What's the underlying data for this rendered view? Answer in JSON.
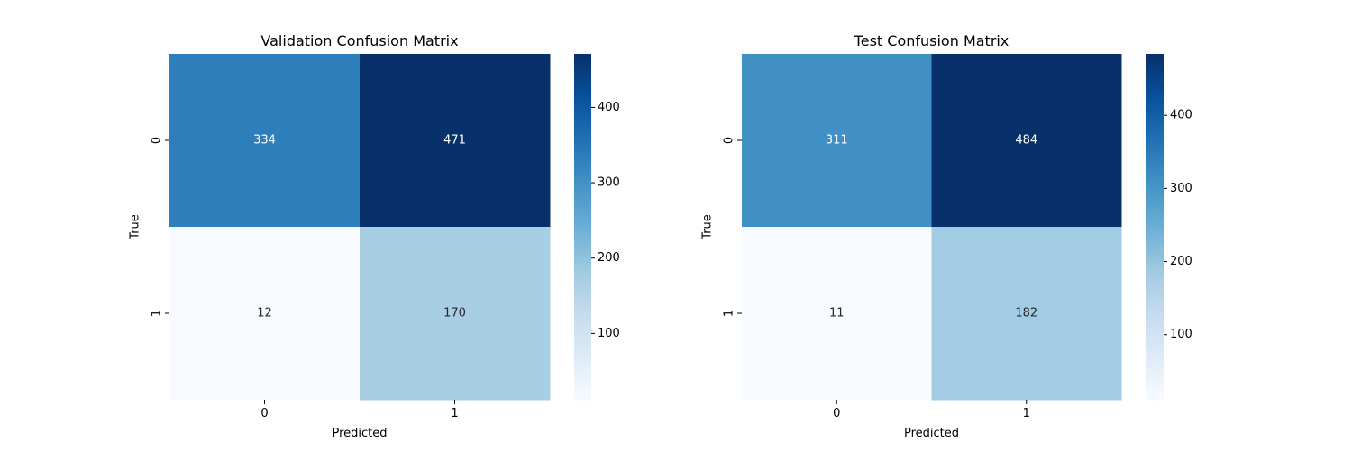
{
  "figure": {
    "background": "#ffffff"
  },
  "colormap": {
    "name": "Blues",
    "stops": [
      "#f7fbff",
      "#deebf7",
      "#c6dbef",
      "#9ecae1",
      "#6baed6",
      "#4292c6",
      "#2171b5",
      "#08519c",
      "#08306b"
    ]
  },
  "chart_data": [
    {
      "type": "heatmap",
      "title": "Validation Confusion Matrix",
      "xlabel": "Predicted",
      "ylabel": "True",
      "x_categories": [
        "0",
        "1"
      ],
      "y_categories": [
        "0",
        "1"
      ],
      "values": [
        [
          334,
          471
        ],
        [
          12,
          170
        ]
      ],
      "colorbar": {
        "min": 12,
        "max": 471,
        "ticks": [
          100,
          200,
          300,
          400
        ]
      }
    },
    {
      "type": "heatmap",
      "title": "Test Confusion Matrix",
      "xlabel": "Predicted",
      "ylabel": "True",
      "x_categories": [
        "0",
        "1"
      ],
      "y_categories": [
        "0",
        "1"
      ],
      "values": [
        [
          311,
          484
        ],
        [
          11,
          182
        ]
      ],
      "colorbar": {
        "min": 11,
        "max": 484,
        "ticks": [
          100,
          200,
          300,
          400
        ]
      }
    }
  ]
}
